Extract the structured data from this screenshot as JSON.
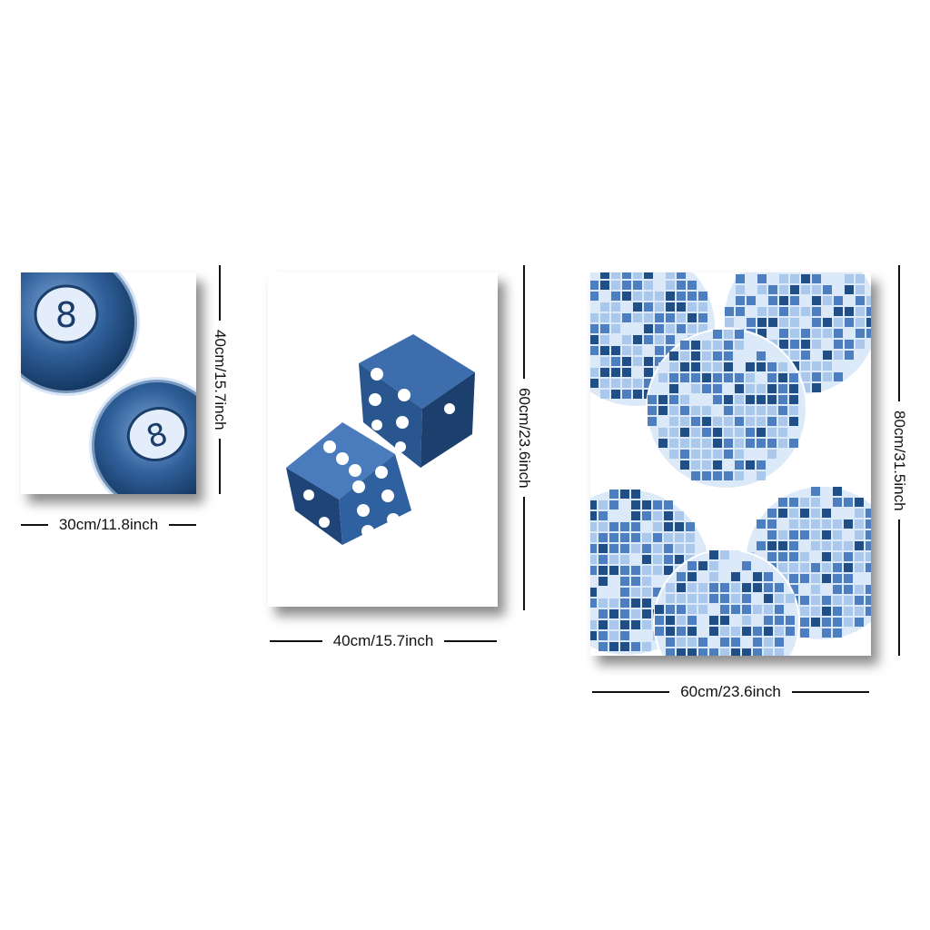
{
  "posters": [
    {
      "subject": "eight-ball",
      "width_label": "30cm/11.8inch",
      "height_label": "40cm/15.7inch",
      "ball_number": "8"
    },
    {
      "subject": "dice",
      "width_label": "40cm/15.7inch",
      "height_label": "60cm/23.6inch"
    },
    {
      "subject": "disco-balls",
      "width_label": "60cm/23.6inch",
      "height_label": "80cm/31.5inch"
    }
  ],
  "colors": {
    "deep_blue": "#1f4f86",
    "mid_blue": "#4d7fc0",
    "light_blue": "#a9c8ec",
    "pale_blue": "#dbe9f8",
    "background": "#ffffff"
  }
}
